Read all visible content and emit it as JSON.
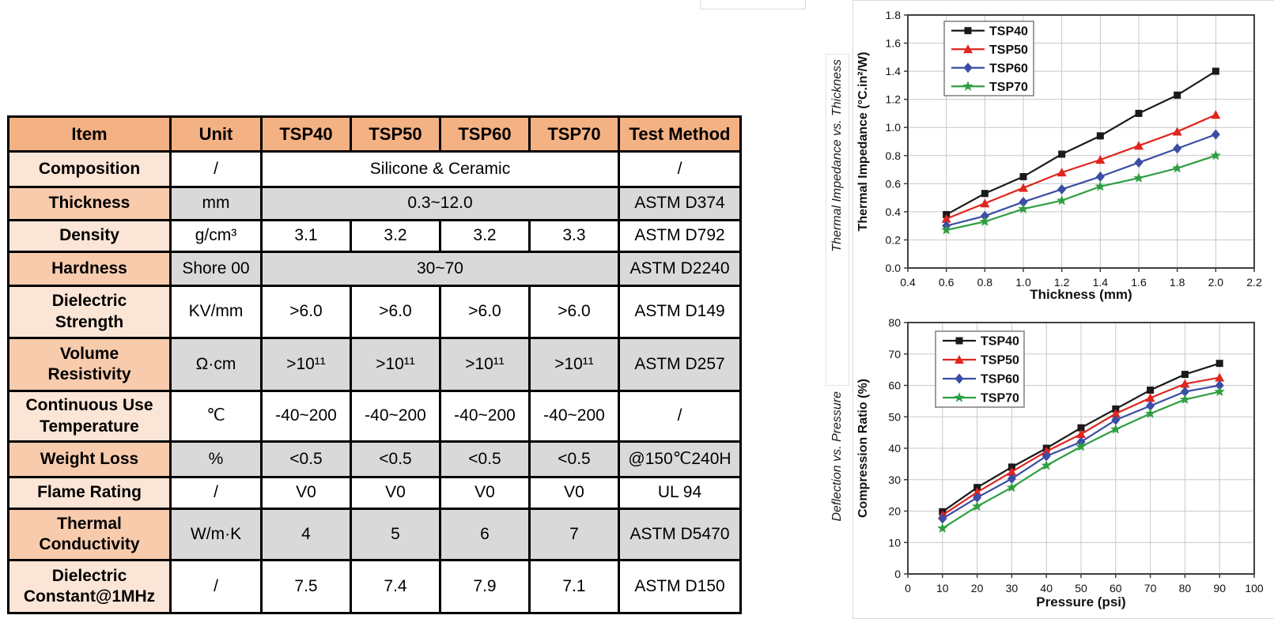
{
  "table": {
    "headers": [
      "Item",
      "Unit",
      "TSP40",
      "TSP50",
      "TSP60",
      "TSP70",
      "Test Method"
    ],
    "rows": [
      {
        "item": "Composition",
        "unit": "/",
        "values": [
          "Silicone & Ceramic"
        ],
        "test": "/"
      },
      {
        "item": "Thickness",
        "unit": "mm",
        "values": [
          "0.3~12.0"
        ],
        "test": "ASTM D374"
      },
      {
        "item": "Density",
        "unit": "g/cm³",
        "values": [
          "3.1",
          "3.2",
          "3.2",
          "3.3"
        ],
        "test": "ASTM D792"
      },
      {
        "item": "Hardness",
        "unit": "Shore 00",
        "values": [
          "30~70"
        ],
        "test": "ASTM D2240"
      },
      {
        "item": "Dielectric\nStrength",
        "unit": "KV/mm",
        "values": [
          ">6.0",
          ">6.0",
          ">6.0",
          ">6.0"
        ],
        "test": "ASTM D149"
      },
      {
        "item": "Volume\nResistivity",
        "unit": "Ω·cm",
        "values": [
          ">10¹¹",
          ">10¹¹",
          ">10¹¹",
          ">10¹¹"
        ],
        "test": "ASTM D257"
      },
      {
        "item": "Continuous Use\nTemperature",
        "unit": "℃",
        "values": [
          "-40~200",
          "-40~200",
          "-40~200",
          "-40~200"
        ],
        "test": "/"
      },
      {
        "item": "Weight Loss",
        "unit": "%",
        "values": [
          "<0.5",
          "<0.5",
          "<0.5",
          "<0.5"
        ],
        "test": "@150℃240H"
      },
      {
        "item": "Flame Rating",
        "unit": "/",
        "values": [
          "V0",
          "V0",
          "V0",
          "V0"
        ],
        "test": "UL 94"
      },
      {
        "item": "Thermal\nConductivity",
        "unit": "W/m·K",
        "values": [
          "4",
          "5",
          "6",
          "7"
        ],
        "test": "ASTM D5470"
      },
      {
        "item": "Dielectric\nConstant@1MHz",
        "unit": "/",
        "values": [
          "7.5",
          "7.4",
          "7.9",
          "7.1"
        ],
        "test": "ASTM D150"
      }
    ],
    "colors": {
      "header_bg": "#F4B183",
      "item_light_bg": "#FBE5D6",
      "item_dark_bg": "#F8CBAD",
      "row_gray_bg": "#D9D9D9",
      "border": "#000000"
    }
  },
  "chart_data": [
    {
      "type": "line",
      "side_label": "Thermal Impedance vs. Thickness",
      "xlabel": "Thickness (mm)",
      "ylabel": "Thermal Impedance (°C.in²/W)",
      "x": [
        0.6,
        0.8,
        1.0,
        1.2,
        1.4,
        1.6,
        1.8,
        2.0
      ],
      "xlim": [
        0.4,
        2.2
      ],
      "xtick_step": 0.2,
      "x_decimals": 1,
      "ylim": [
        0.0,
        1.8
      ],
      "ytick_step": 0.2,
      "y_decimals": 1,
      "grid": true,
      "legend_position": "top-left",
      "series": [
        {
          "name": "TSP40",
          "color": "#1a1a1a",
          "marker": "square",
          "values": [
            0.38,
            0.53,
            0.65,
            0.81,
            0.94,
            1.1,
            1.23,
            1.4
          ]
        },
        {
          "name": "TSP50",
          "color": "#e0251f",
          "marker": "triangle",
          "values": [
            0.35,
            0.46,
            0.57,
            0.68,
            0.77,
            0.87,
            0.97,
            1.09
          ]
        },
        {
          "name": "TSP60",
          "color": "#3b4da4",
          "marker": "diamond",
          "values": [
            0.3,
            0.37,
            0.47,
            0.56,
            0.65,
            0.75,
            0.85,
            0.95
          ]
        },
        {
          "name": "TSP70",
          "color": "#2f9e41",
          "marker": "star",
          "values": [
            0.27,
            0.33,
            0.42,
            0.48,
            0.58,
            0.64,
            0.71,
            0.8
          ]
        }
      ]
    },
    {
      "type": "line",
      "side_label": "Deflection vs. Pressure",
      "xlabel": "Pressure (psi)",
      "ylabel": "Compression Ratio (%)",
      "x": [
        10,
        20,
        30,
        40,
        50,
        60,
        70,
        80,
        90
      ],
      "xlim": [
        0,
        100
      ],
      "xtick_step": 10,
      "x_decimals": 0,
      "ylim": [
        0,
        80
      ],
      "ytick_step": 10,
      "y_decimals": 0,
      "grid": true,
      "legend_position": "top-left",
      "series": [
        {
          "name": "TSP40",
          "color": "#1a1a1a",
          "marker": "square",
          "values": [
            19.8,
            27.5,
            34.0,
            40.0,
            46.5,
            52.5,
            58.5,
            63.5,
            67.0
          ]
        },
        {
          "name": "TSP50",
          "color": "#e0251f",
          "marker": "triangle",
          "values": [
            18.7,
            26.0,
            32.5,
            39.0,
            44.5,
            51.0,
            56.0,
            60.5,
            62.5
          ]
        },
        {
          "name": "TSP60",
          "color": "#3b4da4",
          "marker": "diamond",
          "values": [
            17.6,
            24.3,
            30.3,
            37.5,
            42.0,
            49.0,
            53.5,
            58.0,
            60.0
          ]
        },
        {
          "name": "TSP70",
          "color": "#2f9e41",
          "marker": "star",
          "values": [
            14.5,
            21.5,
            27.5,
            34.5,
            40.5,
            46.0,
            51.0,
            55.5,
            58.0
          ]
        }
      ]
    }
  ],
  "chart_style": {
    "grid_color": "#c8c8c8",
    "frame_color": "#3f3f3f",
    "legend_border": "#7f7f7f"
  }
}
